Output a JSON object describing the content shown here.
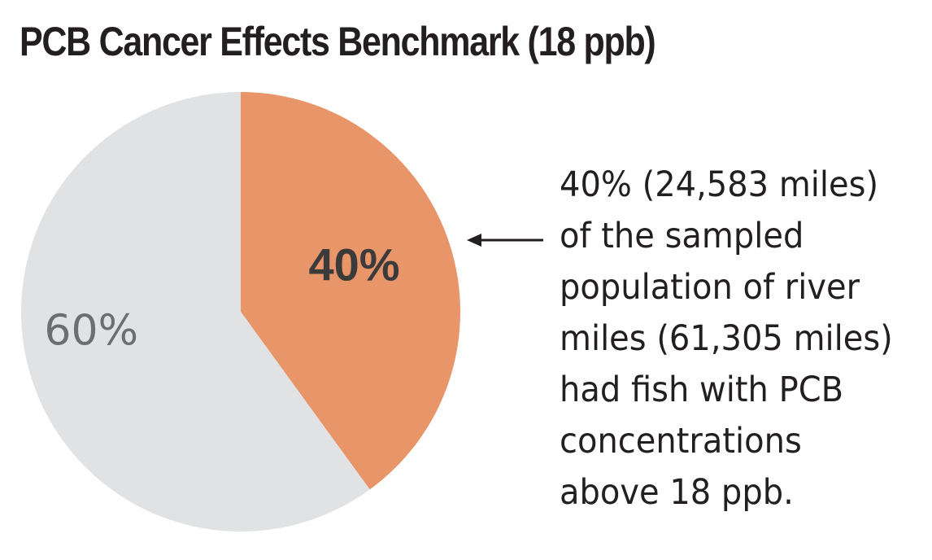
{
  "chart_data": {
    "type": "pie",
    "title": "PCB Cancer Effects Benchmark (18 ppb)",
    "slices": [
      {
        "label": "40%",
        "value": 40,
        "color": "#e8956a",
        "label_color": "#3b3b3b"
      },
      {
        "label": "60%",
        "value": 60,
        "color": "#e1e2e3",
        "label_color": "#6d6e71"
      }
    ],
    "annotation": {
      "arrow": "left",
      "lines": [
        "40% (24,583 miles)",
        "of the sampled",
        "population of river",
        "miles (61,305 miles)",
        "had fish with PCB",
        "concentrations",
        "above 18 ppb."
      ]
    }
  }
}
